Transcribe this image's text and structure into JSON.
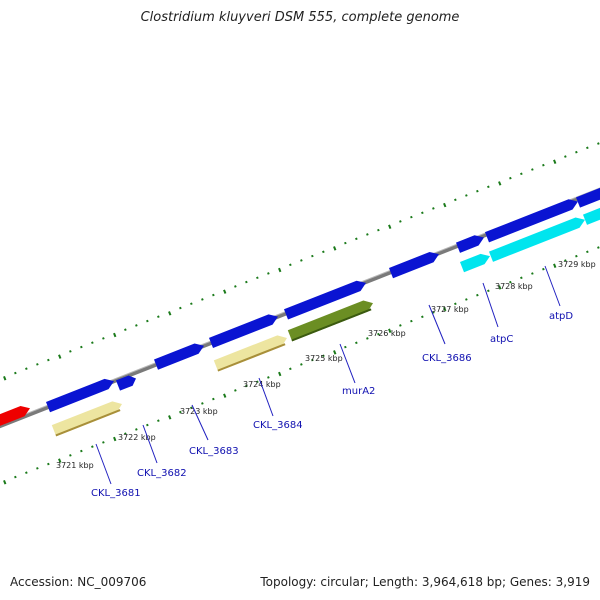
{
  "title": "Clostridium kluyveri DSM 555, complete genome",
  "footer": {
    "accession_label": "Accession: NC_009706",
    "summary_label": "Topology: circular; Length: 3,964,618 bp; Genes: 3,919"
  },
  "colors": {
    "backbone": "#888888",
    "tick": "#1a7a1a",
    "gene_forward": "#0a14d2",
    "gene_reverse_pale": "#ede5a0",
    "gene_olive": "#6b8e23",
    "gene_cyan": "#00e5ee",
    "gene_red": "#ee0000",
    "gene_label": "#1010b0"
  },
  "position_ticks": [
    {
      "label": "3721 kbp"
    },
    {
      "label": "3722 kbp"
    },
    {
      "label": "3723 kbp"
    },
    {
      "label": "3724 kbp"
    },
    {
      "label": "3725 kbp"
    },
    {
      "label": "3726 kbp"
    },
    {
      "label": "3727 kbp"
    },
    {
      "label": "3728 kbp"
    },
    {
      "label": "3729 kbp"
    }
  ],
  "gene_labels": [
    {
      "text": "CKL_3681"
    },
    {
      "text": "CKL_3682"
    },
    {
      "text": "CKL_3683"
    },
    {
      "text": "CKL_3684"
    },
    {
      "text": "murA2"
    },
    {
      "text": "CKL_3686"
    },
    {
      "text": "atpC"
    },
    {
      "text": "atpD"
    }
  ]
}
